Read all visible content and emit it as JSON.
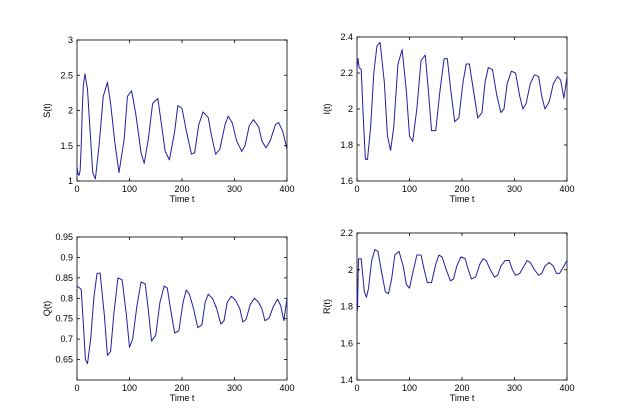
{
  "colors": {
    "line": "#2020a0",
    "axes": "#000000",
    "background": "#ffffff"
  },
  "chart_data": [
    {
      "type": "line",
      "xlabel": "Time t",
      "ylabel": "S(t)",
      "xlim": [
        0,
        400
      ],
      "ylim": [
        1,
        3
      ],
      "xticks": [
        "0",
        "100",
        "200",
        "300",
        "400"
      ],
      "yticks": [
        "1",
        "1.5",
        "2",
        "2.5",
        "3"
      ],
      "grid": false,
      "series": [
        {
          "x": [
            0,
            2,
            4,
            6,
            8,
            10,
            12,
            15,
            20,
            25,
            30,
            35,
            42,
            50,
            58,
            64,
            72,
            80,
            90,
            96,
            104,
            112,
            122,
            128,
            136,
            144,
            154,
            160,
            168,
            176,
            186,
            192,
            200,
            208,
            218,
            224,
            232,
            240,
            250,
            256,
            264,
            272,
            282,
            288,
            296,
            304,
            314,
            320,
            328,
            336,
            346,
            352,
            360,
            368,
            378,
            384,
            392,
            400
          ],
          "y": [
            1.2,
            1.1,
            1.08,
            1.15,
            1.5,
            2.0,
            2.35,
            2.52,
            2.3,
            1.7,
            1.12,
            1.03,
            1.5,
            2.2,
            2.4,
            2.1,
            1.55,
            1.12,
            1.6,
            2.2,
            2.28,
            1.95,
            1.4,
            1.25,
            1.6,
            2.1,
            2.17,
            1.85,
            1.42,
            1.3,
            1.7,
            2.07,
            2.03,
            1.72,
            1.38,
            1.4,
            1.8,
            1.98,
            1.9,
            1.65,
            1.38,
            1.45,
            1.8,
            1.92,
            1.82,
            1.57,
            1.42,
            1.5,
            1.78,
            1.87,
            1.77,
            1.57,
            1.47,
            1.57,
            1.8,
            1.83,
            1.7,
            1.45
          ]
        }
      ]
    },
    {
      "type": "line",
      "xlabel": "Time t",
      "ylabel": "I(t)",
      "xlim": [
        0,
        400
      ],
      "ylim": [
        1.6,
        2.4
      ],
      "xticks": [
        "0",
        "100",
        "200",
        "300",
        "400"
      ],
      "yticks": [
        "1.6",
        "1.8",
        "2",
        "2.2",
        "2.4"
      ],
      "grid": false,
      "series": [
        {
          "x": [
            0,
            2,
            4,
            8,
            12,
            16,
            20,
            26,
            32,
            38,
            44,
            52,
            58,
            64,
            70,
            78,
            86,
            94,
            100,
            106,
            114,
            122,
            130,
            136,
            142,
            150,
            158,
            166,
            172,
            178,
            186,
            194,
            202,
            208,
            214,
            222,
            230,
            238,
            244,
            250,
            258,
            266,
            274,
            280,
            286,
            294,
            302,
            310,
            316,
            322,
            330,
            338,
            346,
            352,
            358,
            366,
            374,
            382,
            388,
            394,
            400
          ],
          "y": [
            2.23,
            2.28,
            2.23,
            2.22,
            1.95,
            1.72,
            1.72,
            1.9,
            2.2,
            2.35,
            2.37,
            2.15,
            1.85,
            1.77,
            1.9,
            2.25,
            2.33,
            2.1,
            1.85,
            1.82,
            2.0,
            2.27,
            2.3,
            2.1,
            1.88,
            1.88,
            2.1,
            2.28,
            2.28,
            2.12,
            1.93,
            1.95,
            2.15,
            2.25,
            2.25,
            2.1,
            1.95,
            1.98,
            2.15,
            2.23,
            2.22,
            2.08,
            1.98,
            2.0,
            2.14,
            2.21,
            2.2,
            2.07,
            2.0,
            2.03,
            2.14,
            2.19,
            2.18,
            2.07,
            2.0,
            2.04,
            2.14,
            2.18,
            2.16,
            2.06,
            2.18
          ]
        }
      ]
    },
    {
      "type": "line",
      "xlabel": "Time t",
      "ylabel": "Q(t)",
      "xlim": [
        0,
        400
      ],
      "ylim": [
        0.6,
        0.95
      ],
      "xticks": [
        "0",
        "100",
        "200",
        "300",
        "400"
      ],
      "yticks": [
        "0.65",
        "0.7",
        "0.75",
        "0.8",
        "0.85",
        "0.9",
        "0.95"
      ],
      "grid": false,
      "series": [
        {
          "x": [
            0,
            4,
            8,
            12,
            16,
            20,
            26,
            32,
            38,
            44,
            52,
            58,
            64,
            70,
            78,
            86,
            94,
            100,
            106,
            114,
            122,
            130,
            136,
            142,
            150,
            158,
            166,
            172,
            178,
            186,
            194,
            202,
            208,
            214,
            222,
            230,
            238,
            244,
            250,
            258,
            266,
            274,
            280,
            286,
            294,
            302,
            310,
            316,
            322,
            330,
            338,
            346,
            352,
            358,
            366,
            374,
            382,
            388,
            394,
            400
          ],
          "y": [
            0.83,
            0.826,
            0.822,
            0.74,
            0.65,
            0.64,
            0.7,
            0.8,
            0.86,
            0.862,
            0.76,
            0.66,
            0.67,
            0.76,
            0.85,
            0.845,
            0.76,
            0.68,
            0.7,
            0.78,
            0.84,
            0.835,
            0.77,
            0.695,
            0.71,
            0.79,
            0.83,
            0.825,
            0.775,
            0.715,
            0.72,
            0.79,
            0.82,
            0.81,
            0.775,
            0.728,
            0.735,
            0.79,
            0.81,
            0.8,
            0.775,
            0.737,
            0.745,
            0.79,
            0.805,
            0.795,
            0.775,
            0.742,
            0.748,
            0.785,
            0.8,
            0.79,
            0.775,
            0.745,
            0.752,
            0.78,
            0.798,
            0.782,
            0.745,
            0.8
          ]
        }
      ]
    },
    {
      "type": "line",
      "xlabel": "Time t",
      "ylabel": "R(t)",
      "xlim": [
        0,
        400
      ],
      "ylim": [
        1.4,
        2.2
      ],
      "xticks": [
        "0",
        "100",
        "200",
        "300",
        "400"
      ],
      "yticks": [
        "1.4",
        "1.6",
        "1.8",
        "2",
        "2.2"
      ],
      "grid": false,
      "series": [
        {
          "x": [
            0,
            1,
            2,
            3,
            5,
            8,
            10,
            14,
            18,
            22,
            28,
            34,
            40,
            46,
            54,
            60,
            66,
            72,
            80,
            88,
            94,
            100,
            106,
            114,
            122,
            128,
            134,
            142,
            150,
            156,
            162,
            170,
            178,
            184,
            190,
            198,
            206,
            212,
            218,
            226,
            234,
            240,
            246,
            254,
            262,
            268,
            274,
            282,
            290,
            296,
            302,
            310,
            318,
            324,
            330,
            338,
            346,
            352,
            358,
            366,
            374,
            380,
            386,
            394,
            400
          ],
          "y": [
            1.9,
            1.78,
            1.95,
            2.06,
            2.06,
            2.06,
            2.0,
            1.88,
            1.85,
            1.9,
            2.05,
            2.11,
            2.1,
            2.0,
            1.88,
            1.87,
            1.95,
            2.08,
            2.1,
            2.02,
            1.92,
            1.9,
            1.98,
            2.08,
            2.08,
            2.0,
            1.93,
            1.93,
            2.03,
            2.08,
            2.07,
            2.0,
            1.94,
            1.95,
            2.02,
            2.07,
            2.06,
            2.0,
            1.95,
            1.96,
            2.03,
            2.06,
            2.05,
            2.0,
            1.96,
            1.97,
            2.02,
            2.05,
            2.05,
            2.0,
            1.97,
            1.98,
            2.02,
            2.05,
            2.04,
            2.0,
            1.97,
            1.98,
            2.02,
            2.04,
            2.02,
            1.98,
            1.98,
            2.02,
            2.05
          ]
        }
      ]
    }
  ]
}
